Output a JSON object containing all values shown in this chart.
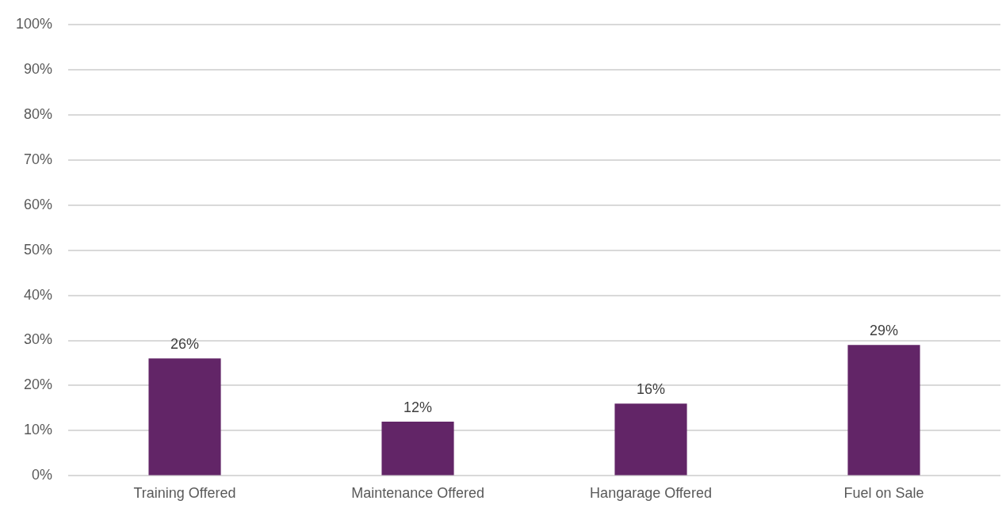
{
  "chart_data": {
    "type": "bar",
    "categories": [
      "Training Offered",
      "Maintenance Offered",
      "Hangarage Offered",
      "Fuel on Sale"
    ],
    "values": [
      26,
      12,
      16,
      29
    ],
    "color": "#622567",
    "ylim": [
      0,
      100
    ],
    "yticks": [
      {
        "value": 0,
        "label": "0%"
      },
      {
        "value": 10,
        "label": "10%"
      },
      {
        "value": 20,
        "label": "20%"
      },
      {
        "value": 30,
        "label": "30%"
      },
      {
        "value": 40,
        "label": "40%"
      },
      {
        "value": 50,
        "label": "50%"
      },
      {
        "value": 60,
        "label": "60%"
      },
      {
        "value": 70,
        "label": "70%"
      },
      {
        "value": 80,
        "label": "80%"
      },
      {
        "value": 90,
        "label": "90%"
      },
      {
        "value": 100,
        "label": "100%"
      }
    ],
    "value_labels": [
      "26%",
      "12%",
      "16%",
      "29%"
    ],
    "grid": "y",
    "legend": false
  }
}
